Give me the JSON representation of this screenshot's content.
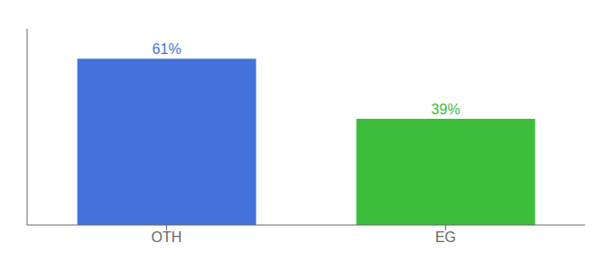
{
  "chart_data": {
    "type": "bar",
    "categories": [
      "OTH",
      "EG"
    ],
    "values": [
      61,
      39
    ],
    "value_labels": [
      "61%",
      "39%"
    ],
    "colors": [
      "#4472db",
      "#3cbe3c"
    ],
    "ylim": [
      0,
      72
    ],
    "grid": false,
    "tick_labels": "x"
  }
}
